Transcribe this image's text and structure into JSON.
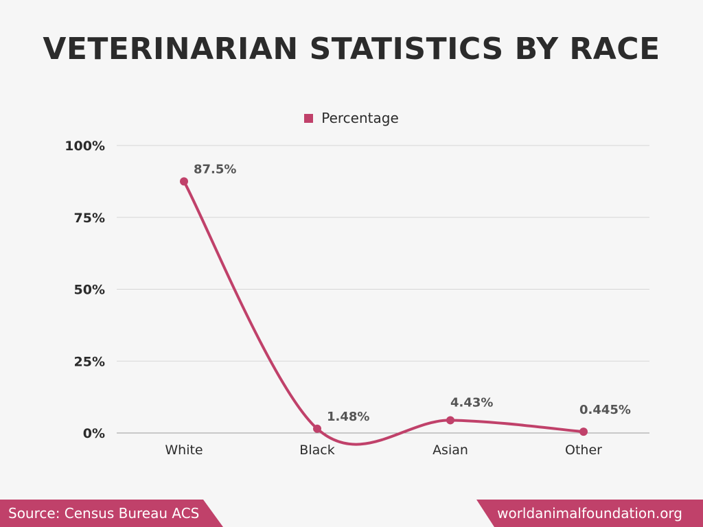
{
  "colors": {
    "accent": "#c0416a",
    "line": "#c0416a",
    "text": "#2b2b2b",
    "grid": "#d6d6d6",
    "background": "#f6f6f6"
  },
  "footer": {
    "source": "Source: Census Bureau ACS",
    "site": "worldanimalfoundation.org"
  },
  "chart_data": {
    "type": "line",
    "title": "VETERINARIAN STATISTICS BY RACE",
    "categories": [
      "White",
      "Black",
      "Asian",
      "Other"
    ],
    "series": [
      {
        "name": "Percentage",
        "values": [
          87.5,
          1.48,
          4.43,
          0.445
        ],
        "labels": [
          "87.5%",
          "1.48%",
          "4.43%",
          "0.445%"
        ]
      }
    ],
    "yticks": [
      0,
      25,
      50,
      75,
      100
    ],
    "ytick_labels": [
      "0%",
      "25%",
      "50%",
      "75%",
      "100%"
    ],
    "ylim": [
      0,
      100
    ],
    "grid": true,
    "legend_position": "top-center",
    "xlabel": "",
    "ylabel": ""
  }
}
